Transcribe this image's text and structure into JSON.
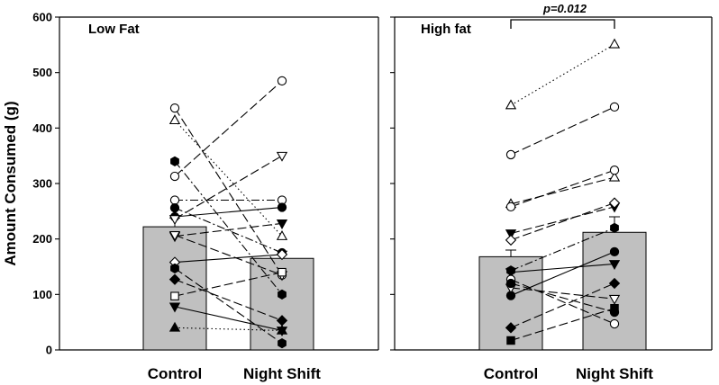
{
  "chart_data": [
    {
      "type": "bar",
      "panel_title": "Low Fat",
      "categories": [
        "Control",
        "Night Shift"
      ],
      "values": [
        222,
        165
      ],
      "error_upper": [
        238,
        178
      ],
      "ylabel": "Amount Consumed (g)",
      "ylim": [
        0,
        600
      ],
      "yticks": [
        "0",
        "100",
        "200",
        "300",
        "400",
        "500",
        "600"
      ],
      "paired_series": [
        {
          "marker": "circle-open",
          "style": "dash",
          "values": [
            436,
            135
          ]
        },
        {
          "marker": "triangle-up-open",
          "style": "dot",
          "values": [
            414,
            205
          ]
        },
        {
          "marker": "circle-open",
          "style": "dash",
          "values": [
            313,
            485
          ]
        },
        {
          "marker": "circle-open",
          "style": "dashdot",
          "values": [
            270,
            270
          ]
        },
        {
          "marker": "hexagon-filled",
          "style": "dashdot",
          "values": [
            340,
            100
          ]
        },
        {
          "marker": "circle-filled",
          "style": "dashdot",
          "values": [
            256,
            175
          ]
        },
        {
          "marker": "circle-filled",
          "style": "solid",
          "values": [
            240,
            257
          ]
        },
        {
          "marker": "triangle-down-open",
          "style": "dash",
          "values": [
            236,
            350
          ]
        },
        {
          "marker": "triangle-down-filled",
          "style": "dash",
          "values": [
            205,
            228
          ]
        },
        {
          "marker": "triangle-down-open",
          "style": "dash",
          "values": [
            207,
            135
          ]
        },
        {
          "marker": "diamond-open",
          "style": "solid",
          "values": [
            158,
            172
          ]
        },
        {
          "marker": "hexagon-filled",
          "style": "dash",
          "values": [
            147,
            12
          ]
        },
        {
          "marker": "diamond-filled",
          "style": "dash",
          "values": [
            127,
            53
          ]
        },
        {
          "marker": "square-open",
          "style": "dash",
          "values": [
            97,
            140
          ]
        },
        {
          "marker": "triangle-down-filled",
          "style": "solid",
          "values": [
            78,
            35
          ]
        },
        {
          "marker": "triangle-up-filled",
          "style": "dot",
          "values": [
            40,
            35
          ]
        }
      ]
    },
    {
      "type": "bar",
      "panel_title": "High fat",
      "categories": [
        "Control",
        "Night Shift"
      ],
      "values": [
        168,
        212
      ],
      "error_upper": [
        180,
        240
      ],
      "ylim": [
        0,
        600
      ],
      "annotation": "p=0.012",
      "paired_series": [
        {
          "marker": "triangle-up-open",
          "style": "dot",
          "values": [
            441,
            551
          ]
        },
        {
          "marker": "circle-open",
          "style": "dash",
          "values": [
            352,
            438
          ]
        },
        {
          "marker": "triangle-up-open",
          "style": "dash",
          "values": [
            263,
            311
          ]
        },
        {
          "marker": "circle-open",
          "style": "dash",
          "values": [
            258,
            324
          ]
        },
        {
          "marker": "triangle-down-filled",
          "style": "dash",
          "values": [
            210,
            258
          ]
        },
        {
          "marker": "diamond-open",
          "style": "dash",
          "values": [
            198,
            265
          ]
        },
        {
          "marker": "hexagon-filled",
          "style": "dashdot",
          "values": [
            143,
            220
          ]
        },
        {
          "marker": "triangle-down-filled",
          "style": "solid",
          "values": [
            140,
            155
          ]
        },
        {
          "marker": "circle-filled",
          "style": "solid",
          "values": [
            98,
            177
          ]
        },
        {
          "marker": "triangle-down-open",
          "style": "dash",
          "values": [
            112,
            92
          ]
        },
        {
          "marker": "circle-open",
          "style": "dash",
          "values": [
            127,
            47
          ]
        },
        {
          "marker": "circle-filled",
          "style": "dash",
          "values": [
            120,
            68
          ]
        },
        {
          "marker": "diamond-filled",
          "style": "dash",
          "values": [
            40,
            120
          ]
        },
        {
          "marker": "square-filled",
          "style": "dash",
          "values": [
            17,
            75
          ]
        }
      ]
    }
  ]
}
